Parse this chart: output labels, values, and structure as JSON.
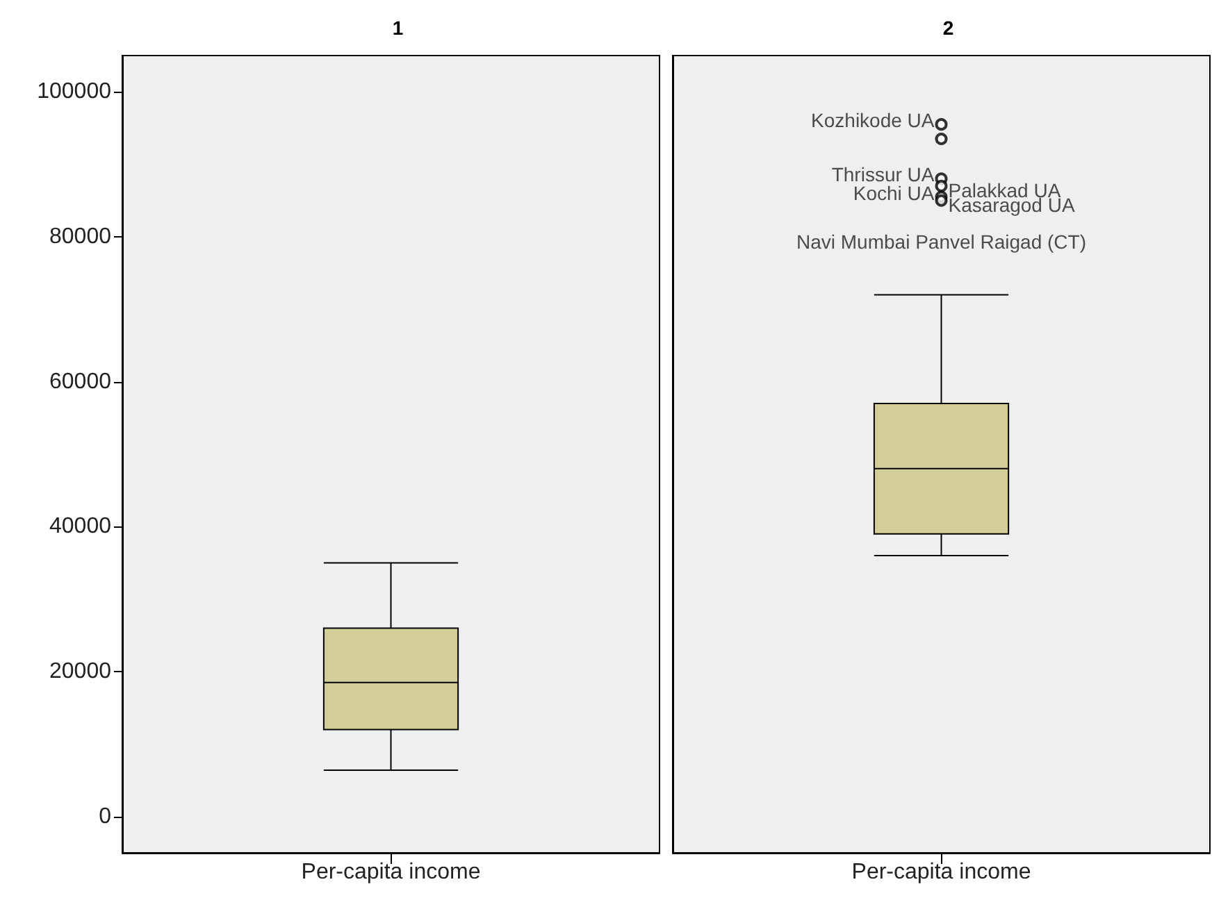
{
  "chart_data": [
    {
      "type": "box",
      "title": "1",
      "categories": [
        "Per-capita income"
      ],
      "color": "#d3ce98",
      "boxes": [
        {
          "low": 6400,
          "q1": 12000,
          "median": 18500,
          "q3": 26000,
          "high": 35000
        }
      ],
      "ylim": [
        -5000,
        105000
      ],
      "yticks": [
        0,
        20000,
        40000,
        60000,
        80000,
        100000
      ],
      "grid": false
    },
    {
      "type": "box",
      "title": "2",
      "categories": [
        "Per-capita income"
      ],
      "color": "#d3ce98",
      "boxes": [
        {
          "low": 36000,
          "q1": 39000,
          "median": 48000,
          "q3": 57000,
          "high": 72000,
          "outliers": [
            95500,
            93500,
            88000,
            87000,
            85500,
            85000
          ]
        }
      ],
      "ylim": [
        -5000,
        105000
      ],
      "yticks": [
        0,
        20000,
        40000,
        60000,
        80000,
        100000
      ],
      "grid": false,
      "tick_labels": "x",
      "annotations": [
        "Kozhikode UA",
        "Navi Mumbai Panvel Raigad (CT)",
        "Thrissur UA",
        "Palakkad UA",
        "Kochi UA",
        "Kasaragod UA"
      ]
    }
  ]
}
